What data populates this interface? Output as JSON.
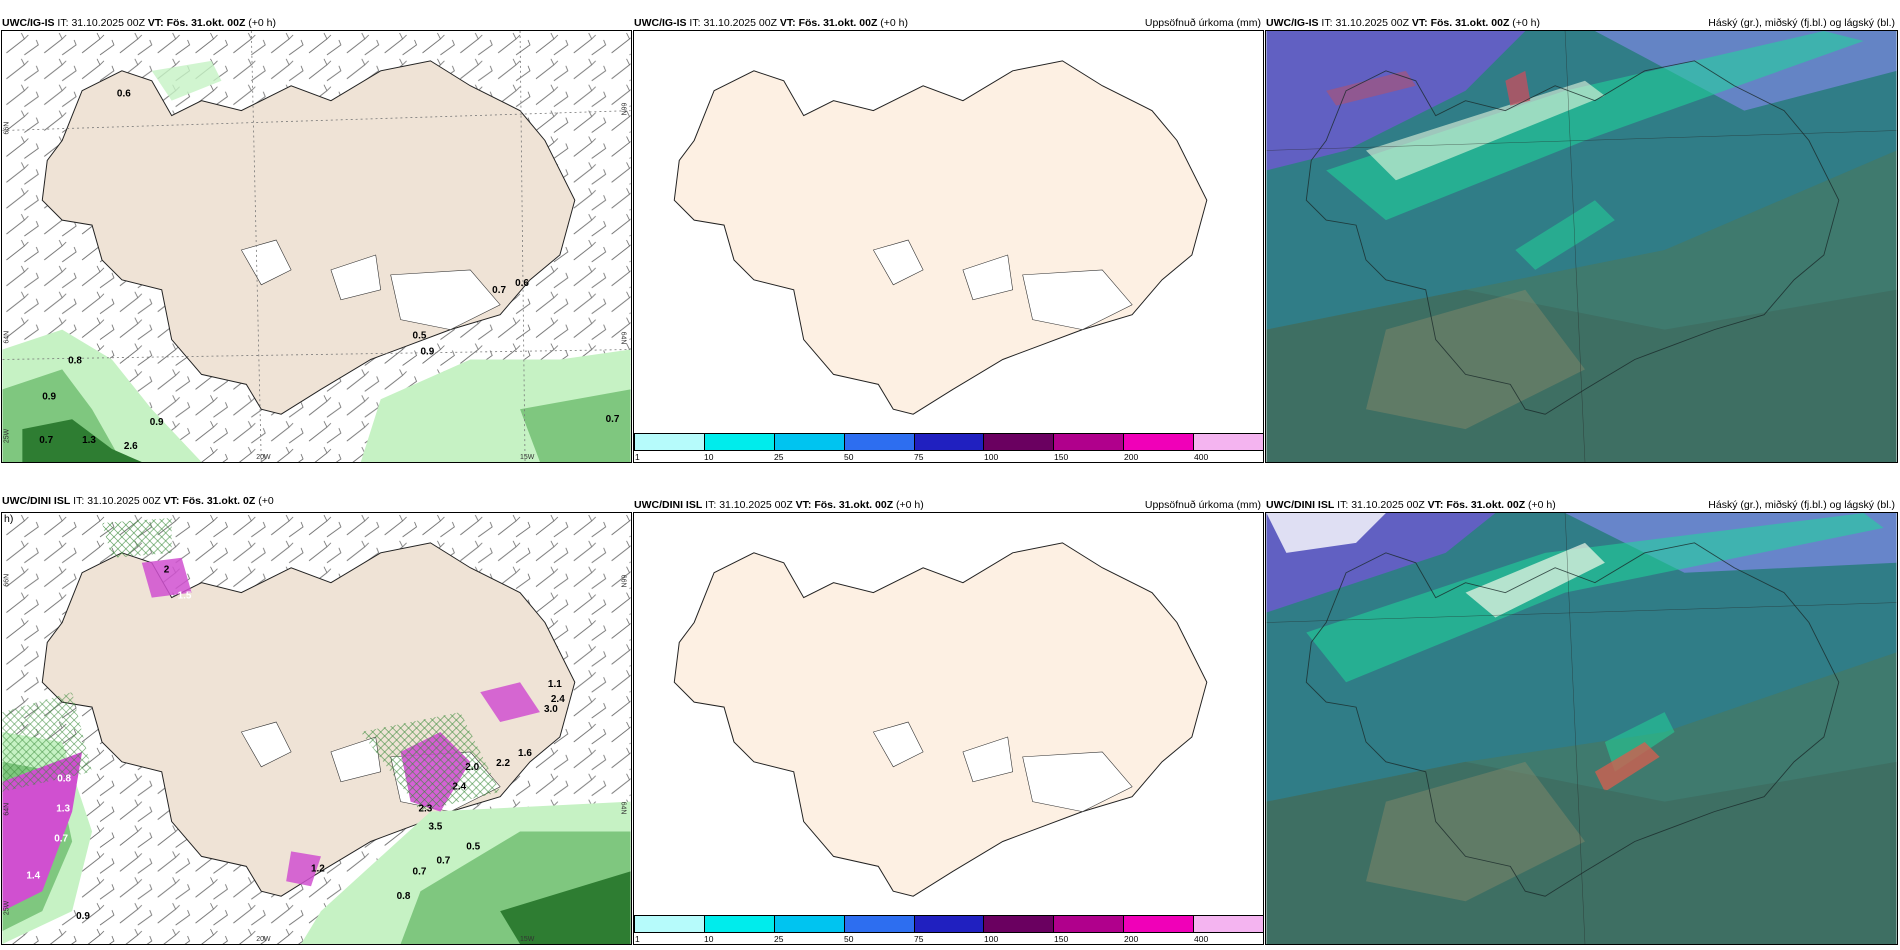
{
  "rows": [
    {
      "wind_panel": {
        "model": "UWC/IG-IS",
        "it_label": "IT:",
        "it_value": "31.10.2025 00Z",
        "vt_label": "VT: Fös. 31.okt. 00Z",
        "lead": "(+0 h)",
        "values": [
          "0.6",
          "0.7",
          "0.6",
          "0.5",
          "0.9",
          "0.8",
          "0.9",
          "0.7",
          "1.3",
          "0.9",
          "2.6",
          "0.7"
        ],
        "lat_labels": [
          "66N",
          "66N",
          "64N",
          "64N",
          "25W"
        ],
        "lon_labels": [
          "20W",
          "15W"
        ]
      },
      "precip_panel": {
        "model": "UWC/IG-IS",
        "it_label": "IT:",
        "it_value": "31.10.2025 00Z",
        "vt_label": "VT: Fös. 31.okt. 00Z",
        "lead": "(+0 h)",
        "right_title": "Uppsöfnuð úrkoma (mm)"
      },
      "cloud_panel": {
        "model": "UWC/IG-IS",
        "it_label": "IT:",
        "it_value": "31.10.2025 00Z",
        "vt_label": "VT: Fös. 31.okt. 00Z",
        "lead": "(+0 h)",
        "right_title": "Háský (gr.), miðský (fj.bl.) og lágský (bl.)"
      }
    },
    {
      "wind_panel": {
        "model": "UWC/DINI ISL",
        "it_label": "IT:",
        "it_value": "31.10.2025 00Z",
        "vt_label": "VT: Fös. 31.okt. 0Z",
        "lead": "(+0",
        "lead_wrap": "h)",
        "values": [
          "2",
          "1.5",
          "1.1",
          "2.4",
          "3.0",
          "2.2",
          "1.6",
          "2.0",
          "2.4",
          "2.3",
          "3.5",
          "0.8",
          "1.3",
          "0.7",
          "1.4",
          "0.5",
          "0.7",
          "0.7",
          "1.2",
          "0.8",
          "0.9"
        ],
        "lat_labels": [
          "66N",
          "66N",
          "64N",
          "64N",
          "25W"
        ],
        "lon_labels": [
          "20W",
          "15W"
        ]
      },
      "precip_panel": {
        "model": "UWC/DINI ISL",
        "it_label": "IT:",
        "it_value": "31.10.2025 00Z",
        "vt_label": "VT: Fös. 31.okt. 00Z",
        "lead": "(+0 h)",
        "right_title": "Uppsöfnuð úrkoma (mm)"
      },
      "cloud_panel": {
        "model": "UWC/DINI ISL",
        "it_label": "IT:",
        "it_value": "31.10.2025 00Z",
        "vt_label": "VT: Fös. 31.okt. 00Z",
        "lead": "(+0 h)",
        "right_title": "Háský (gr.), miðský (fj.bl.) og lágský (bl.)"
      }
    }
  ],
  "colorbar": {
    "labels": [
      "1",
      "10",
      "25",
      "50",
      "75",
      "100",
      "150",
      "200",
      "400"
    ],
    "colors": [
      "#b6fbfb",
      "#00ecec",
      "#00c4f0",
      "#2d6ef0",
      "#2020c0",
      "#6a0060",
      "#b0008c",
      "#f000b8",
      "#f4b4f0"
    ]
  },
  "colors": {
    "land": "#efe3d6",
    "land_precip": "#fdf0e3",
    "sea": "#ffffff",
    "precip_light": "#c6f2c4",
    "precip_mid": "#7fc77f",
    "precip_dark": "#2e7d32",
    "precip_magenta": "#d050d0",
    "cloud_high": "#6a5acd",
    "cloud_mid": "#1fd99a",
    "cloud_low": "#3f7a6e"
  }
}
